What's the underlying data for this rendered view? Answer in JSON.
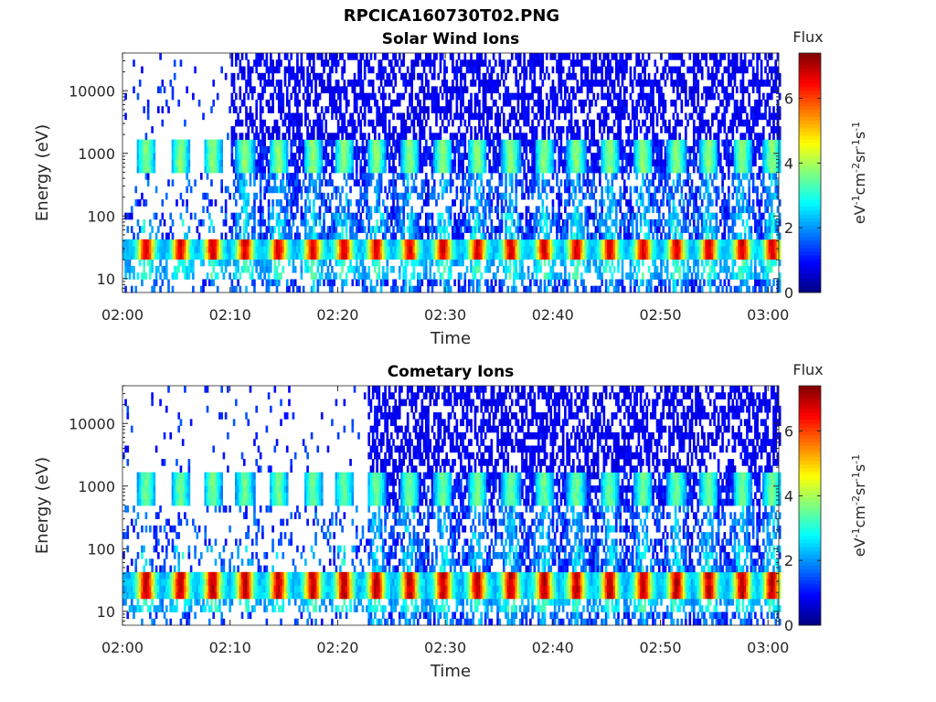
{
  "figure": {
    "filename": "RPCICA160730T02.PNG"
  },
  "colorbar": {
    "label": "Flux",
    "units_main": "eV",
    "units_parts": [
      "-1",
      "cm",
      "-2",
      "sr",
      "-1",
      "s",
      "-1"
    ],
    "ticks": [
      "0",
      "2",
      "4",
      "6"
    ],
    "range": [
      0,
      7.4
    ],
    "colormap": "jet"
  },
  "chart_data": [
    {
      "type": "heatmap",
      "title": "Solar Wind Ions",
      "xlabel": "Time",
      "ylabel": "Energy (eV)",
      "x_tick_labels": [
        "02:00",
        "02:10",
        "02:20",
        "02:30",
        "02:40",
        "02:50",
        "03:00"
      ],
      "y_tick_labels": [
        "10",
        "100",
        "1000",
        "10000"
      ],
      "y_scale": "log",
      "ylim": [
        6,
        40000
      ],
      "xlim_minutes": [
        0,
        61
      ],
      "value_description": "flux in eV^-1 cm^-2 sr^-1 s^-1 (color scale 0-7.4)",
      "features": {
        "periodic_peak_minutes": [
          2.1,
          5.3,
          8.3,
          11.3,
          14.4,
          17.6,
          20.5,
          23.5,
          26.6,
          29.7,
          32.9,
          36.0,
          39.1,
          42.1,
          45.2,
          48.3,
          51.4,
          54.4,
          57.5,
          60.3
        ],
        "low_energy_band_eV": [
          20,
          40
        ],
        "low_energy_peak_flux": 6.8,
        "mid_energy_band_eV": [
          500,
          1500
        ],
        "mid_energy_peak_flux": 3.8,
        "high_energy_noise_start_minute": 10,
        "high_energy_noise_flux": 0.6
      }
    },
    {
      "type": "heatmap",
      "title": "Cometary Ions",
      "xlabel": "Time",
      "ylabel": "Energy (eV)",
      "x_tick_labels": [
        "02:00",
        "02:10",
        "02:20",
        "02:30",
        "02:40",
        "02:50",
        "03:00"
      ],
      "y_tick_labels": [
        "10",
        "100",
        "1000",
        "10000"
      ],
      "y_scale": "log",
      "ylim": [
        6,
        40000
      ],
      "xlim_minutes": [
        0,
        61
      ],
      "value_description": "flux in eV^-1 cm^-2 sr^-1 s^-1 (color scale 0-7.4)",
      "features": {
        "periodic_peak_minutes": [
          2.1,
          5.3,
          8.3,
          11.3,
          14.4,
          17.6,
          20.5,
          23.5,
          26.6,
          29.7,
          32.9,
          36.0,
          39.1,
          42.1,
          45.2,
          48.3,
          51.4,
          54.4,
          57.5,
          60.3
        ],
        "low_energy_band_eV": [
          18,
          40
        ],
        "low_energy_peak_flux": 7.0,
        "mid_energy_band_eV": [
          500,
          1500
        ],
        "mid_energy_peak_flux": 3.6,
        "high_energy_noise_start_minute": 22.8,
        "high_energy_noise_flux": 0.6
      }
    }
  ]
}
